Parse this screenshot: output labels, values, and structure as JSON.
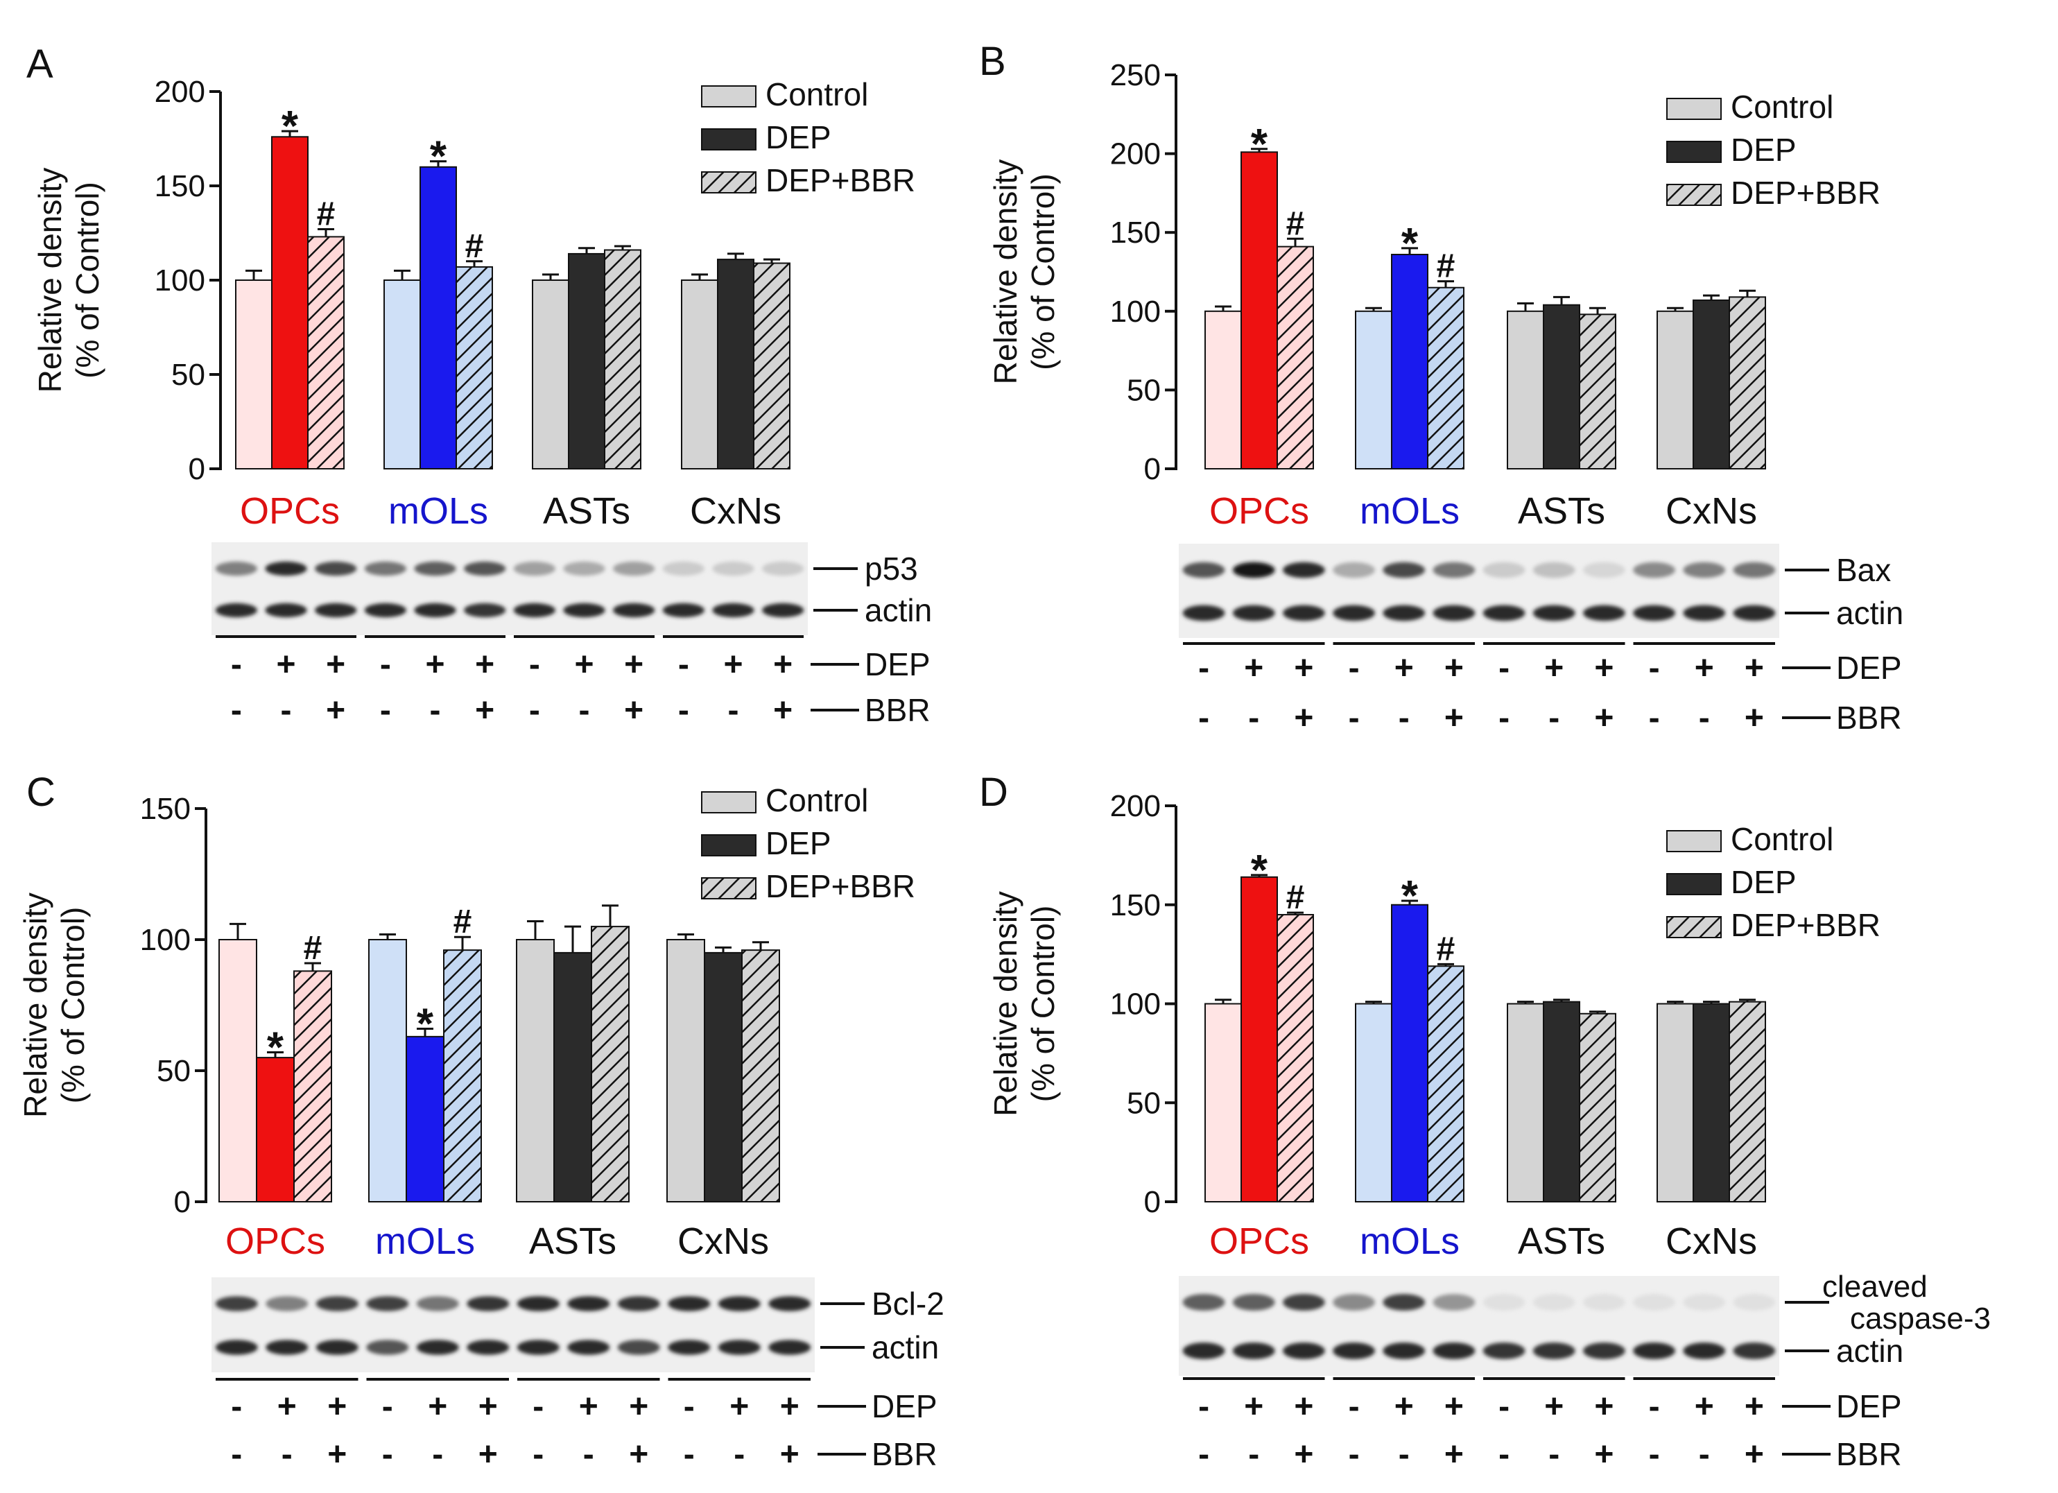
{
  "colors": {
    "opc_control": "#ffe4e4",
    "opc_dep": "#ee1111",
    "opc_depbbr": "#ffd8d8",
    "mol_control": "#cfe0f7",
    "mol_dep": "#1a1aee",
    "mol_depbbr": "#c4d8f2",
    "other_control": "#d4d4d4",
    "other_dep": "#2b2b2b",
    "other_depbbr": "#d4d4d4",
    "axis": "#111111",
    "label_opcs": "#dd1111",
    "label_mols": "#1515cc",
    "label_default": "#111111"
  },
  "chart_data": [
    {
      "panel": "A",
      "type": "bar",
      "ylabel": [
        "Relative density",
        "(% of Control)"
      ],
      "ylim": [
        0,
        200
      ],
      "yticks": [
        0,
        50,
        100,
        150,
        200
      ],
      "categories": [
        "OPCs",
        "mOLs",
        "ASTs",
        "CxNs"
      ],
      "legend": [
        "Control",
        "DEP",
        "DEP+BBR"
      ],
      "series": [
        {
          "name": "Control",
          "values": [
            100,
            100,
            100,
            100
          ],
          "errors": [
            5,
            5,
            3,
            3
          ]
        },
        {
          "name": "DEP",
          "values": [
            176,
            160,
            114,
            111
          ],
          "errors": [
            3,
            3,
            3,
            3
          ]
        },
        {
          "name": "DEP+BBR",
          "values": [
            123,
            107,
            116,
            109
          ],
          "errors": [
            4,
            3,
            2,
            2
          ]
        }
      ],
      "annotations": [
        {
          "group": 0,
          "bar": 1,
          "text": "*"
        },
        {
          "group": 0,
          "bar": 2,
          "text": "#"
        },
        {
          "group": 1,
          "bar": 1,
          "text": "*"
        },
        {
          "group": 1,
          "bar": 2,
          "text": "#"
        }
      ],
      "blot": {
        "rows": [
          {
            "label": [
              "p53"
            ],
            "intensities": [
              0.5,
              0.9,
              0.75,
              0.55,
              0.65,
              0.7,
              0.35,
              0.3,
              0.35,
              0.15,
              0.15,
              0.15
            ]
          },
          {
            "label": [
              "actin"
            ],
            "intensities": [
              0.9,
              0.9,
              0.9,
              0.9,
              0.9,
              0.85,
              0.9,
              0.9,
              0.9,
              0.9,
              0.9,
              0.9
            ]
          }
        ],
        "dep": [
          "-",
          "+",
          "+",
          "-",
          "+",
          "+",
          "-",
          "+",
          "+",
          "-",
          "+",
          "+"
        ],
        "bbr": [
          "-",
          "-",
          "+",
          "-",
          "-",
          "+",
          "-",
          "-",
          "+",
          "-",
          "-",
          "+"
        ],
        "dep_label": "DEP",
        "bbr_label": "BBR"
      }
    },
    {
      "panel": "B",
      "type": "bar",
      "ylabel": [
        "Relative density",
        "(% of Control)"
      ],
      "ylim": [
        0,
        250
      ],
      "yticks": [
        0,
        50,
        100,
        150,
        200,
        250
      ],
      "categories": [
        "OPCs",
        "mOLs",
        "ASTs",
        "CxNs"
      ],
      "legend": [
        "Control",
        "DEP",
        "DEP+BBR"
      ],
      "series": [
        {
          "name": "Control",
          "values": [
            100,
            100,
            100,
            100
          ],
          "errors": [
            3,
            2,
            5,
            2
          ]
        },
        {
          "name": "DEP",
          "values": [
            201,
            136,
            104,
            107
          ],
          "errors": [
            2,
            4,
            5,
            3
          ]
        },
        {
          "name": "DEP+BBR",
          "values": [
            141,
            115,
            98,
            109
          ],
          "errors": [
            5,
            4,
            4,
            4
          ]
        }
      ],
      "annotations": [
        {
          "group": 0,
          "bar": 1,
          "text": "*"
        },
        {
          "group": 0,
          "bar": 2,
          "text": "#"
        },
        {
          "group": 1,
          "bar": 1,
          "text": "*"
        },
        {
          "group": 1,
          "bar": 2,
          "text": "#"
        }
      ],
      "blot": {
        "rows": [
          {
            "label": [
              "Bax"
            ],
            "intensities": [
              0.7,
              1.0,
              0.9,
              0.3,
              0.75,
              0.55,
              0.15,
              0.2,
              0.1,
              0.45,
              0.5,
              0.55
            ]
          },
          {
            "label": [
              "actin"
            ],
            "intensities": [
              0.9,
              0.9,
              0.9,
              0.9,
              0.9,
              0.9,
              0.9,
              0.9,
              0.9,
              0.9,
              0.9,
              0.9
            ]
          }
        ],
        "dep": [
          "-",
          "+",
          "+",
          "-",
          "+",
          "+",
          "-",
          "+",
          "+",
          "-",
          "+",
          "+"
        ],
        "bbr": [
          "-",
          "-",
          "+",
          "-",
          "-",
          "+",
          "-",
          "-",
          "+",
          "-",
          "-",
          "+"
        ],
        "dep_label": "DEP",
        "bbr_label": "BBR"
      }
    },
    {
      "panel": "C",
      "type": "bar",
      "ylabel": [
        "Relative density",
        "(% of Control)"
      ],
      "ylim": [
        0,
        150
      ],
      "yticks": [
        0,
        50,
        100,
        150
      ],
      "categories": [
        "OPCs",
        "mOLs",
        "ASTs",
        "CxNs"
      ],
      "legend": [
        "Control",
        "DEP",
        "DEP+BBR"
      ],
      "series": [
        {
          "name": "Control",
          "values": [
            100,
            100,
            100,
            100
          ],
          "errors": [
            6,
            2,
            7,
            2
          ]
        },
        {
          "name": "DEP",
          "values": [
            55,
            63,
            95,
            95
          ],
          "errors": [
            2,
            3,
            10,
            2
          ]
        },
        {
          "name": "DEP+BBR",
          "values": [
            88,
            96,
            105,
            96
          ],
          "errors": [
            3,
            5,
            8,
            3
          ]
        }
      ],
      "annotations": [
        {
          "group": 0,
          "bar": 1,
          "text": "*"
        },
        {
          "group": 0,
          "bar": 2,
          "text": "#"
        },
        {
          "group": 1,
          "bar": 1,
          "text": "*"
        },
        {
          "group": 1,
          "bar": 2,
          "text": "#"
        }
      ],
      "blot": {
        "rows": [
          {
            "label": [
              "Bcl-2"
            ],
            "intensities": [
              0.8,
              0.5,
              0.8,
              0.8,
              0.55,
              0.85,
              0.9,
              0.9,
              0.85,
              0.9,
              0.9,
              0.9
            ]
          },
          {
            "label": [
              "actin"
            ],
            "intensities": [
              0.9,
              0.9,
              0.9,
              0.7,
              0.9,
              0.9,
              0.9,
              0.9,
              0.75,
              0.9,
              0.9,
              0.9
            ]
          }
        ],
        "dep": [
          "-",
          "+",
          "+",
          "-",
          "+",
          "+",
          "-",
          "+",
          "+",
          "-",
          "+",
          "+"
        ],
        "bbr": [
          "-",
          "-",
          "+",
          "-",
          "-",
          "+",
          "-",
          "-",
          "+",
          "-",
          "-",
          "+"
        ],
        "dep_label": "DEP",
        "bbr_label": "BBR"
      }
    },
    {
      "panel": "D",
      "type": "bar",
      "ylabel": [
        "Relative density",
        "(% of Control)"
      ],
      "ylim": [
        0,
        200
      ],
      "yticks": [
        0,
        50,
        100,
        150,
        200
      ],
      "categories": [
        "OPCs",
        "mOLs",
        "ASTs",
        "CxNs"
      ],
      "legend": [
        "Control",
        "DEP",
        "DEP+BBR"
      ],
      "series": [
        {
          "name": "Control",
          "values": [
            100,
            100,
            100,
            100
          ],
          "errors": [
            2,
            1,
            1,
            1
          ]
        },
        {
          "name": "DEP",
          "values": [
            164,
            150,
            101,
            100
          ],
          "errors": [
            1,
            2,
            1,
            1
          ]
        },
        {
          "name": "DEP+BBR",
          "values": [
            145,
            119,
            95,
            101
          ],
          "errors": [
            1,
            1,
            1,
            1
          ]
        }
      ],
      "annotations": [
        {
          "group": 0,
          "bar": 1,
          "text": "*"
        },
        {
          "group": 0,
          "bar": 2,
          "text": "#"
        },
        {
          "group": 1,
          "bar": 1,
          "text": "*"
        },
        {
          "group": 1,
          "bar": 2,
          "text": "#"
        }
      ],
      "blot": {
        "rows": [
          {
            "label": [
              "cleaved",
              "caspase-3"
            ],
            "intensities": [
              0.65,
              0.65,
              0.8,
              0.45,
              0.8,
              0.4,
              0.05,
              0.05,
              0.05,
              0.05,
              0.05,
              0.05
            ]
          },
          {
            "label": [
              "actin"
            ],
            "intensities": [
              0.9,
              0.9,
              0.9,
              0.9,
              0.9,
              0.9,
              0.85,
              0.85,
              0.85,
              0.9,
              0.9,
              0.85
            ]
          }
        ],
        "dep": [
          "-",
          "+",
          "+",
          "-",
          "+",
          "+",
          "-",
          "+",
          "+",
          "-",
          "+",
          "+"
        ],
        "bbr": [
          "-",
          "-",
          "+",
          "-",
          "-",
          "+",
          "-",
          "-",
          "+",
          "-",
          "-",
          "+"
        ],
        "dep_label": "DEP",
        "bbr_label": "BBR"
      }
    }
  ]
}
